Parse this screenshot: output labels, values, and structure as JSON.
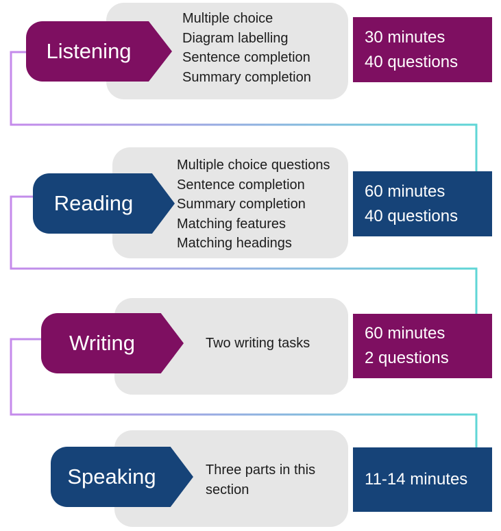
{
  "colors": {
    "purple": "#7e0f61",
    "navy": "#164378",
    "grey": "#e6e6e6",
    "line_purple": "#c58aeb",
    "line_cyan": "#5fd6d6"
  },
  "sections": [
    {
      "name": "Listening",
      "tasks": [
        "Multiple choice",
        "Diagram labelling",
        "Sentence completion",
        "Summary completion"
      ],
      "stats": [
        "30 minutes",
        "40 questions"
      ]
    },
    {
      "name": "Reading",
      "tasks": [
        "Multiple choice questions",
        "Sentence completion",
        "Summary completion",
        "Matching features",
        "Matching headings"
      ],
      "stats": [
        "60 minutes",
        "40 questions"
      ]
    },
    {
      "name": "Writing",
      "tasks": [
        "Two writing tasks"
      ],
      "stats": [
        "60 minutes",
        "2 questions"
      ]
    },
    {
      "name": "Speaking",
      "tasks": [
        "Three parts in this",
        "section"
      ],
      "stats": [
        "11-14 minutes"
      ]
    }
  ]
}
